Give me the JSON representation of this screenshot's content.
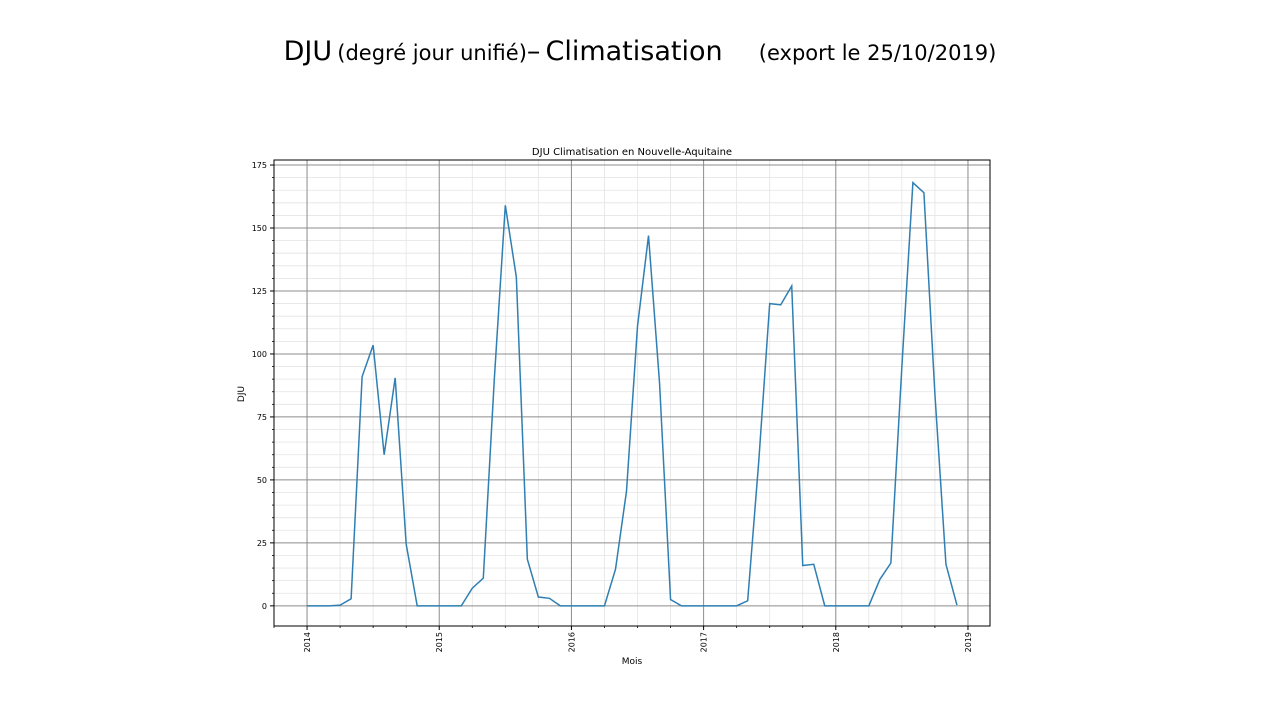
{
  "slide": {
    "title_main": "DJU",
    "title_paren": "(degré jour unifié)",
    "title_dash": "–",
    "title_topic": "Climatisation",
    "title_export": "(export le 25/10/2019)"
  },
  "colors": {
    "series": "#2f7fb2",
    "major_grid": "#8c8c8c",
    "minor_grid": "#e4e4e4",
    "axes": "#000000"
  },
  "chart_data": {
    "type": "line",
    "title": "DJU Climatisation en Nouvelle-Aquitaine",
    "xlabel": "Mois",
    "ylabel": "DJU",
    "grid": true,
    "x_ticks": [
      "2014",
      "2015",
      "2016",
      "2017",
      "2018",
      "2019"
    ],
    "y_ticks": [
      0,
      25,
      50,
      75,
      100,
      125,
      150,
      175
    ],
    "ylim": [
      -8,
      177
    ],
    "xlim": [
      "2013-10",
      "2019-03"
    ],
    "series": [
      {
        "x": [
          "2014-01",
          "2014-02",
          "2014-03",
          "2014-04",
          "2014-05",
          "2014-06",
          "2014-07",
          "2014-08",
          "2014-09",
          "2014-10",
          "2014-11",
          "2014-12",
          "2015-01",
          "2015-02",
          "2015-03",
          "2015-04",
          "2015-05",
          "2015-06",
          "2015-07",
          "2015-08",
          "2015-09",
          "2015-10",
          "2015-11",
          "2015-12",
          "2016-01",
          "2016-02",
          "2016-03",
          "2016-04",
          "2016-05",
          "2016-06",
          "2016-07",
          "2016-08",
          "2016-09",
          "2016-10",
          "2016-11",
          "2016-12",
          "2017-01",
          "2017-02",
          "2017-03",
          "2017-04",
          "2017-05",
          "2017-06",
          "2017-07",
          "2017-08",
          "2017-09",
          "2017-10",
          "2017-11",
          "2017-12",
          "2018-01",
          "2018-02",
          "2018-03",
          "2018-04",
          "2018-05",
          "2018-06",
          "2018-07",
          "2018-08",
          "2018-09",
          "2018-10",
          "2018-11",
          "2018-12"
        ],
        "values": [
          0,
          0,
          0,
          0.3,
          2.8,
          91,
          103.5,
          60,
          90.5,
          24.5,
          0,
          0,
          0,
          0,
          0,
          7,
          11,
          90,
          159,
          130.5,
          18.5,
          3.5,
          3,
          0,
          0,
          0,
          0,
          0,
          14.5,
          45.5,
          111,
          147,
          88.5,
          2.5,
          0,
          0,
          0,
          0,
          0,
          0,
          2,
          57,
          120,
          119.5,
          127,
          16,
          16.5,
          0,
          0,
          0,
          0,
          0,
          10.5,
          17,
          95,
          168,
          164,
          84,
          16.5,
          0.3
        ]
      }
    ]
  }
}
